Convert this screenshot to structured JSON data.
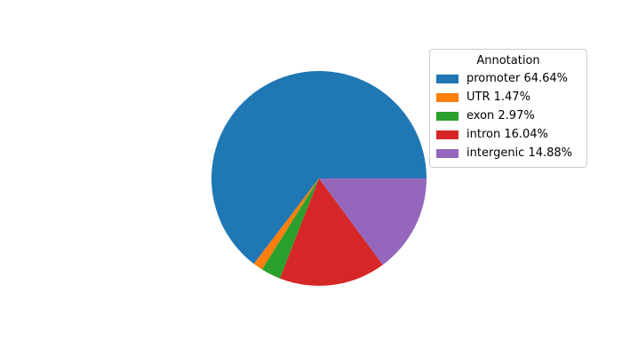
{
  "chart_data": {
    "type": "pie",
    "legend_title": "Annotation",
    "categories": [
      "promoter",
      "UTR",
      "exon",
      "intron",
      "intergenic"
    ],
    "values": [
      64.64,
      1.47,
      2.97,
      16.04,
      14.88
    ],
    "unit": "%",
    "colors": [
      "#1f77b4",
      "#ff7f0e",
      "#2ca02c",
      "#d62728",
      "#9467bd"
    ],
    "legend_labels": [
      "promoter 64.64%",
      "UTR 1.47%",
      "exon 2.97%",
      "intron 16.04%",
      "intergenic 14.88%"
    ],
    "legend_position": "upper right",
    "start_angle_deg": 0,
    "counterclockwise": true,
    "background_color": "#ffffff"
  }
}
